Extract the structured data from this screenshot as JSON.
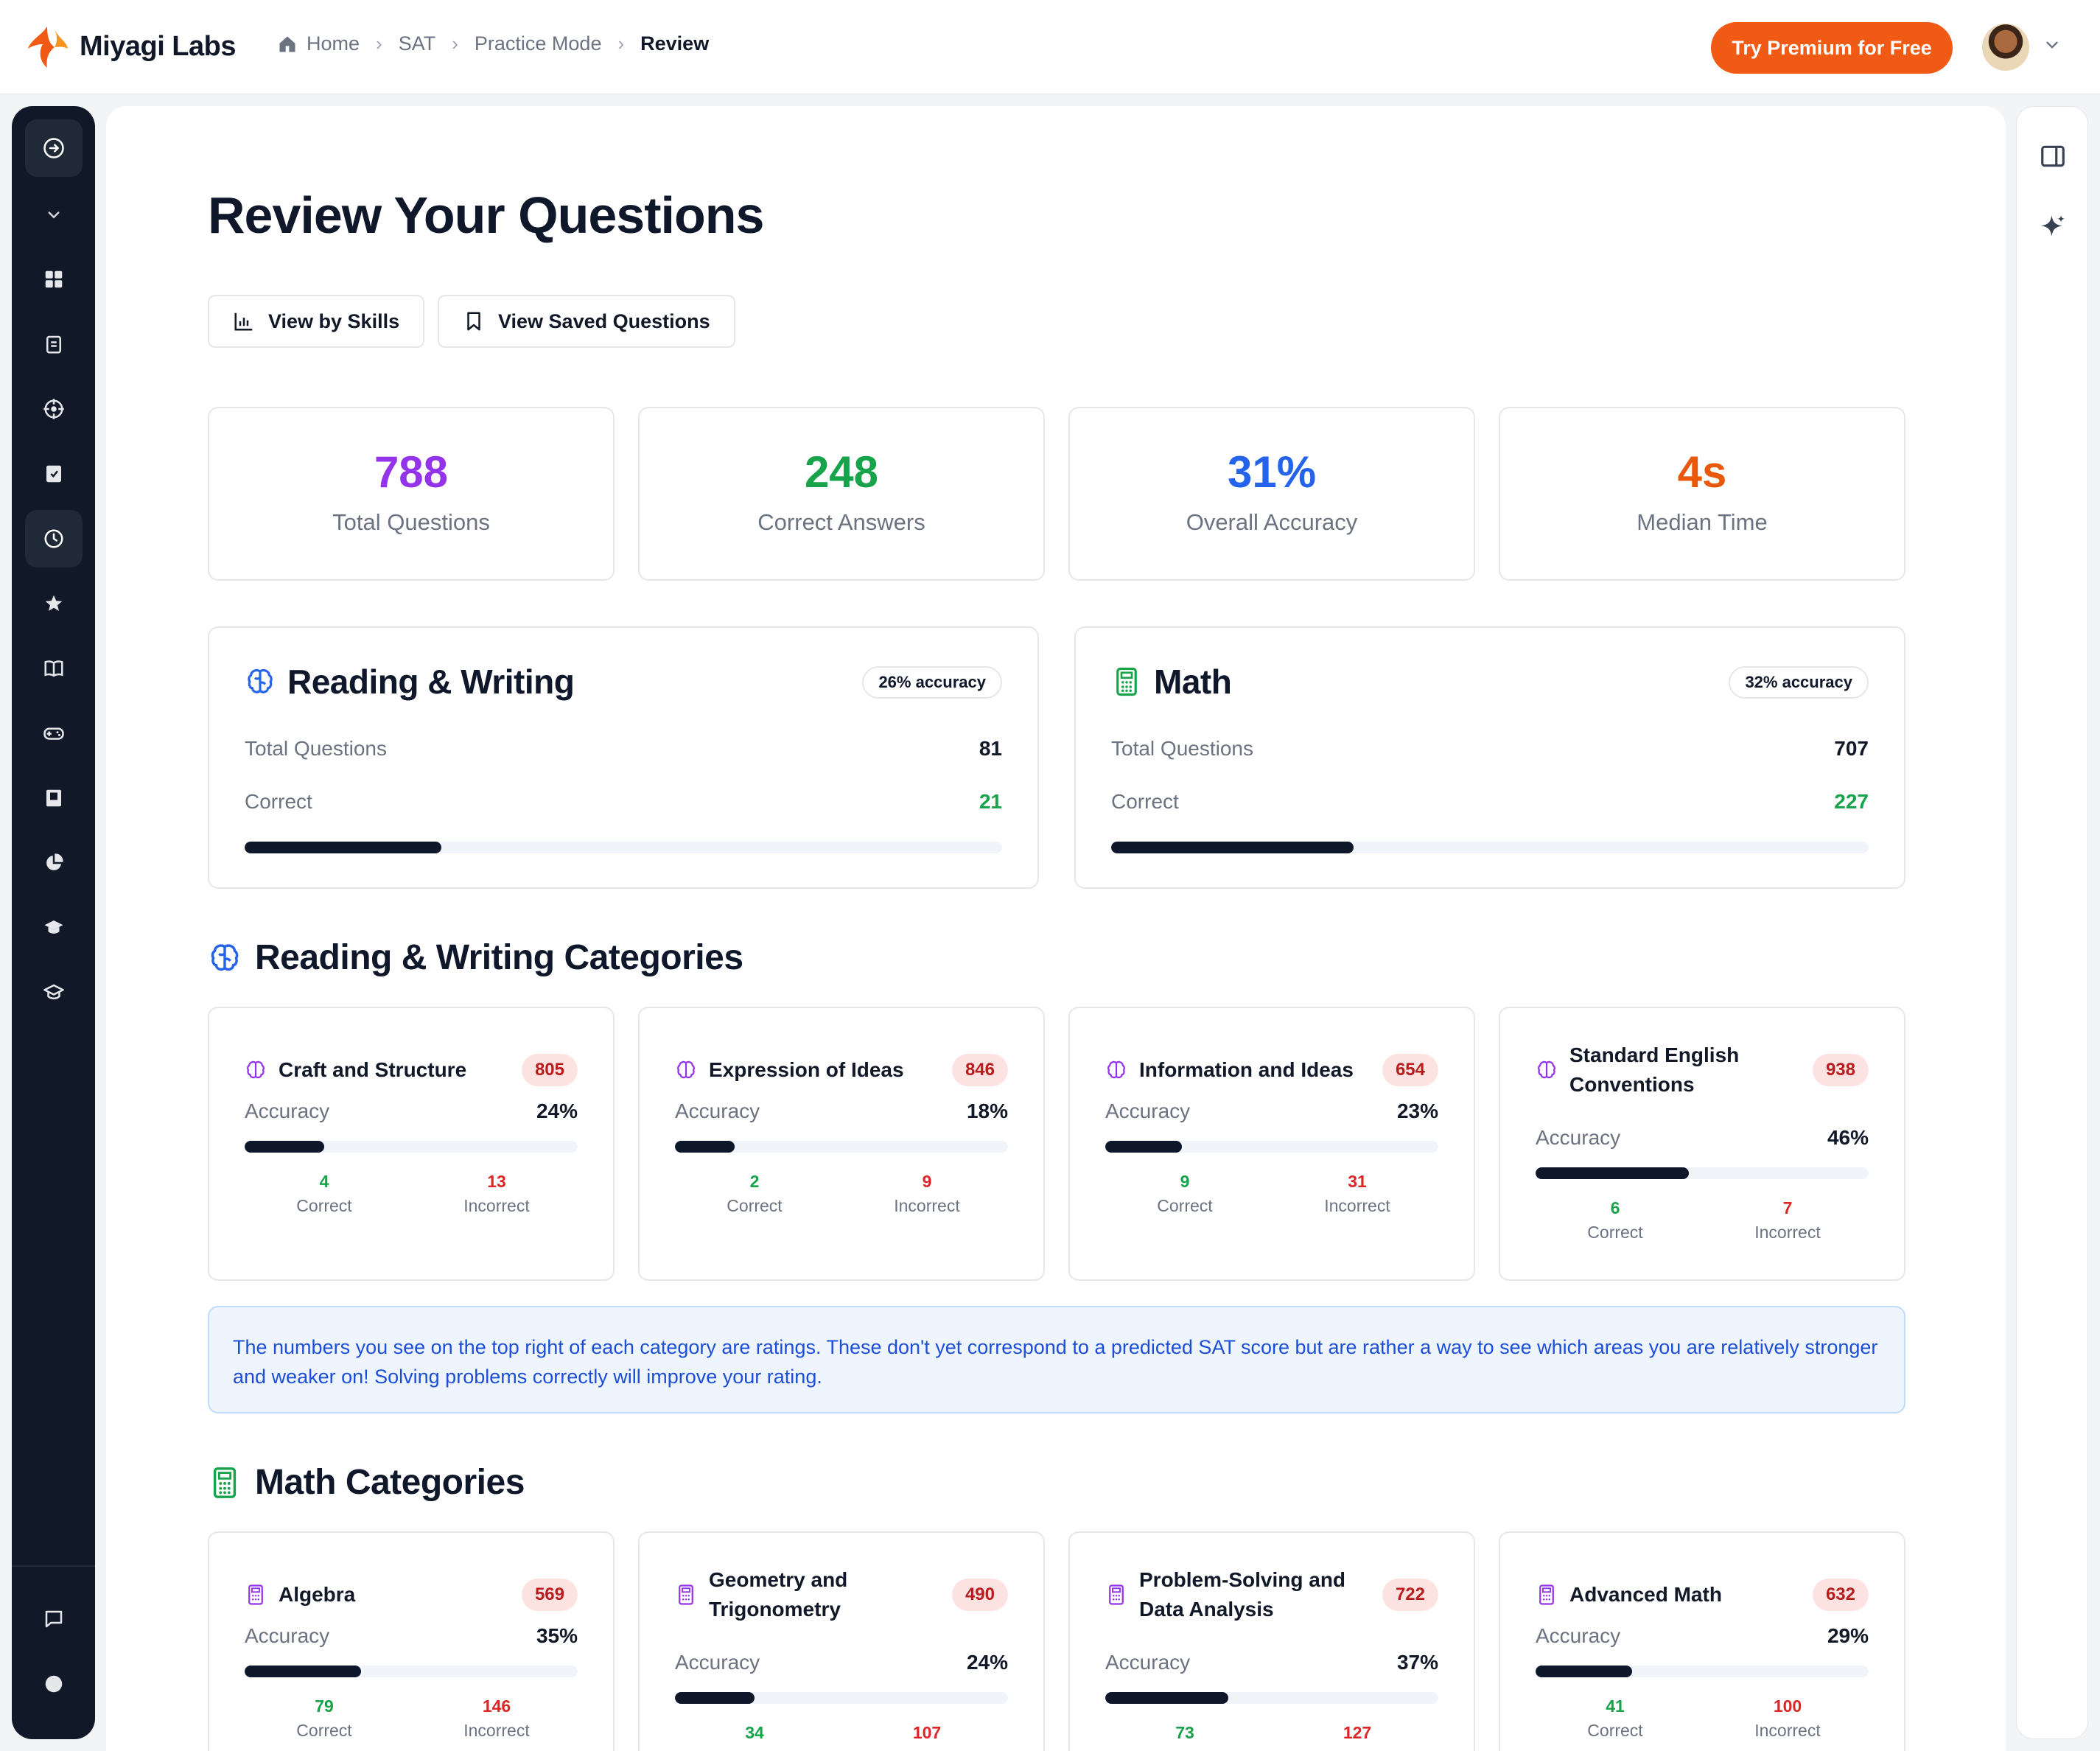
{
  "brand": {
    "name": "Miyagi Labs",
    "logo_color": "#f05a14"
  },
  "breadcrumb": [
    {
      "label": "Home",
      "icon": "home-icon"
    },
    {
      "label": "SAT"
    },
    {
      "label": "Practice Mode"
    },
    {
      "label": "Review"
    }
  ],
  "header": {
    "premium_label": "Try Premium for Free"
  },
  "sidebar": {
    "items": [
      {
        "icon": "expand-arrow-icon",
        "active": true
      },
      {
        "icon": "chevron-down-icon"
      },
      {
        "icon": "dashboard-icon"
      },
      {
        "icon": "clipboard-icon"
      },
      {
        "icon": "target-icon"
      },
      {
        "icon": "notebook-icon"
      },
      {
        "icon": "clock-icon",
        "active": true
      },
      {
        "icon": "star-icon"
      },
      {
        "icon": "book-open-icon"
      },
      {
        "icon": "gamepad-icon"
      },
      {
        "icon": "book-icon"
      },
      {
        "icon": "chart-pie-icon"
      },
      {
        "icon": "graduation-cap-icon"
      },
      {
        "icon": "graduation-cap-outline-icon"
      },
      {
        "icon": "chat-icon"
      },
      {
        "icon": "theme-toggle-icon"
      }
    ]
  },
  "page": {
    "title": "Review Your Questions",
    "view_skills": "View by Skills",
    "view_saved": "View Saved Questions"
  },
  "stats": [
    {
      "value": "788",
      "label": "Total Questions",
      "color": "#9333ea"
    },
    {
      "value": "248",
      "label": "Correct Answers",
      "color": "#16a34a"
    },
    {
      "value": "31%",
      "label": "Overall Accuracy",
      "color": "#2563eb"
    },
    {
      "value": "4s",
      "label": "Median Time",
      "color": "#ea580c"
    }
  ],
  "sections": [
    {
      "title": "Reading & Writing",
      "accuracy": "26% accuracy",
      "total_label": "Total Questions",
      "total": "81",
      "correct_label": "Correct",
      "correct": "21",
      "progress": 0.26,
      "icon": "brain-icon"
    },
    {
      "title": "Math",
      "accuracy": "32% accuracy",
      "total_label": "Total Questions",
      "total": "707",
      "correct_label": "Correct",
      "correct": "227",
      "progress": 0.32,
      "icon": "calculator-icon"
    }
  ],
  "rw_heading": "Reading & Writing Categories",
  "math_heading": "Math Categories",
  "labels": {
    "accuracy": "Accuracy",
    "correct": "Correct",
    "incorrect": "Incorrect"
  },
  "rw_categories": [
    {
      "name": "Craft and Structure",
      "rating": "805",
      "accuracy": "24%",
      "progress": 0.24,
      "correct": "4",
      "incorrect": "13"
    },
    {
      "name": "Expression of Ideas",
      "rating": "846",
      "accuracy": "18%",
      "progress": 0.18,
      "correct": "2",
      "incorrect": "9"
    },
    {
      "name": "Information and Ideas",
      "rating": "654",
      "accuracy": "23%",
      "progress": 0.23,
      "correct": "9",
      "incorrect": "31"
    },
    {
      "name": "Standard English Conventions",
      "rating": "938",
      "accuracy": "46%",
      "progress": 0.46,
      "correct": "6",
      "incorrect": "7"
    }
  ],
  "info_text": "The numbers you see on the top right of each category are ratings. These don't yet correspond to a predicted SAT score but are rather a way to see which areas you are relatively stronger and weaker on! Solving problems correctly will improve your rating.",
  "math_categories": [
    {
      "name": "Algebra",
      "rating": "569",
      "accuracy": "35%",
      "progress": 0.35,
      "correct": "79",
      "incorrect": "146"
    },
    {
      "name": "Geometry and Trigonometry",
      "rating": "490",
      "accuracy": "24%",
      "progress": 0.24,
      "correct": "34",
      "incorrect": "107"
    },
    {
      "name": "Problem-Solving and Data Analysis",
      "rating": "722",
      "accuracy": "37%",
      "progress": 0.37,
      "correct": "73",
      "incorrect": "127"
    },
    {
      "name": "Advanced Math",
      "rating": "632",
      "accuracy": "29%",
      "progress": 0.29,
      "correct": "41",
      "incorrect": "100"
    }
  ]
}
